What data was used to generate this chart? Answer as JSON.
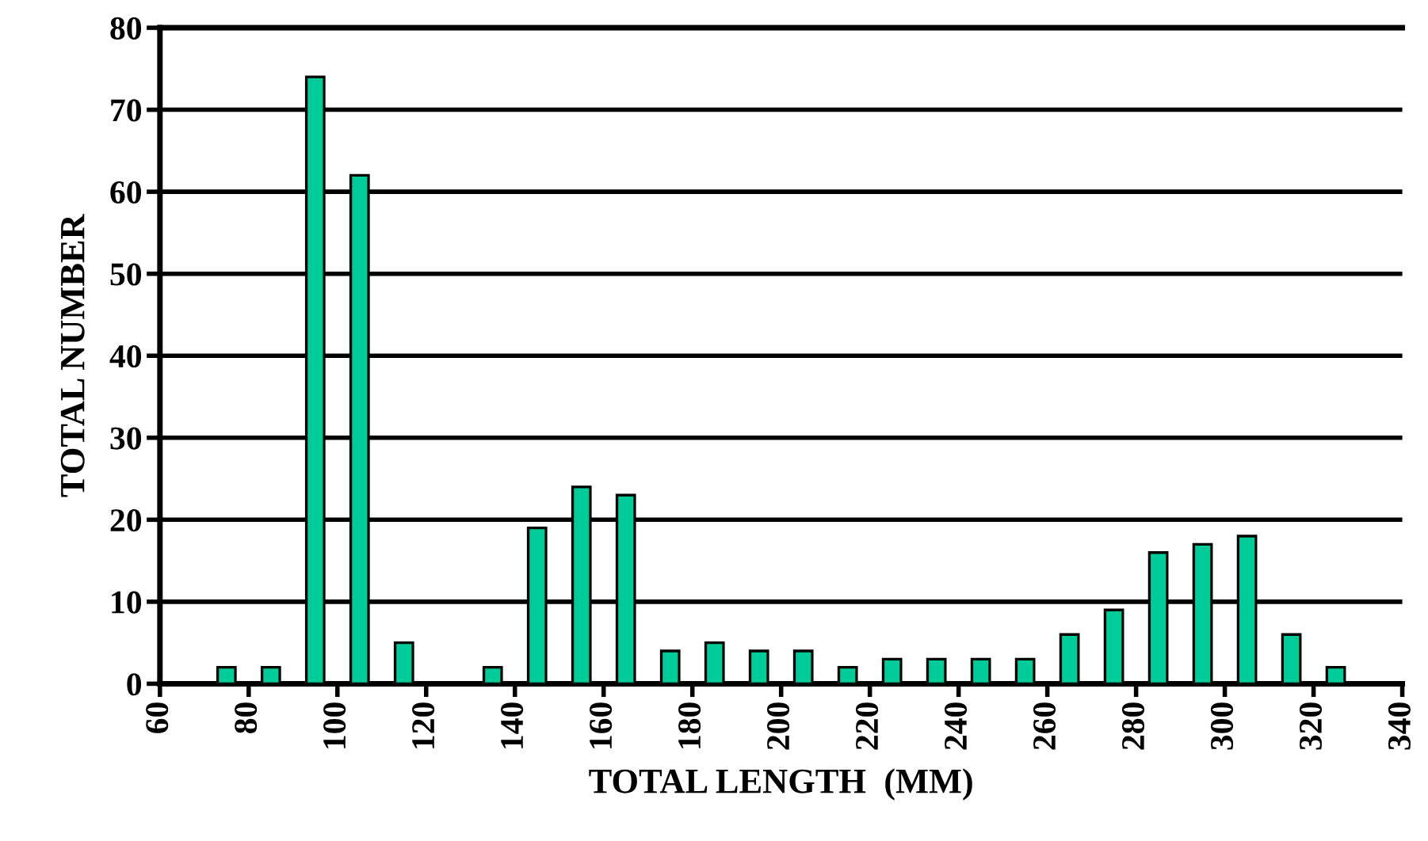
{
  "chart_data": {
    "type": "histogram",
    "xlabel": "TOTAL LENGTH  (MM)",
    "ylabel": "TOTAL NUMBER",
    "bins": [
      60,
      70,
      80,
      90,
      100,
      110,
      120,
      130,
      140,
      150,
      160,
      170,
      180,
      190,
      200,
      210,
      220,
      230,
      240,
      250,
      260,
      270,
      280,
      290,
      300,
      310,
      320,
      330,
      340
    ],
    "values": [
      0,
      2,
      2,
      74,
      62,
      5,
      0,
      2,
      19,
      24,
      23,
      4,
      5,
      4,
      4,
      2,
      3,
      3,
      3,
      3,
      6,
      9,
      16,
      17,
      18,
      6,
      2,
      0
    ],
    "color": "#00cc99",
    "xlim": [
      60,
      340
    ],
    "xticks": [
      60,
      80,
      100,
      120,
      140,
      160,
      180,
      200,
      220,
      240,
      260,
      280,
      300,
      320,
      340
    ],
    "ylim": [
      0,
      80
    ],
    "yticks": [
      0,
      10,
      20,
      30,
      40,
      50,
      60,
      70,
      80
    ],
    "grid": "y"
  }
}
